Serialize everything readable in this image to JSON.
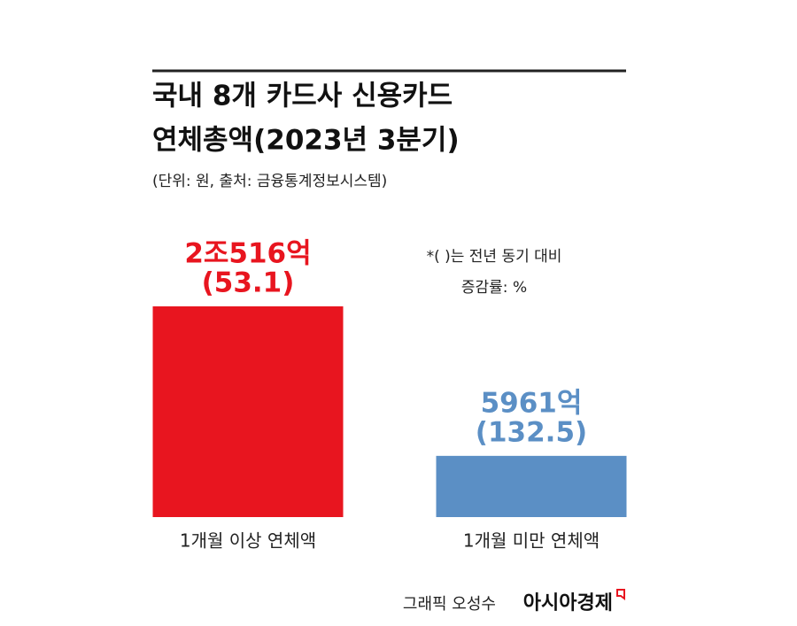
{
  "chart_data": {
    "type": "bar",
    "title": [
      "국내 8개 카드사 신용카드",
      "연체총액(2023년 3분기)"
    ],
    "subtitle": "(단위: 원, 출처: 금융통계정보시스템)",
    "note": [
      "*( )는 전년 동기 대비",
      "증감률: %"
    ],
    "categories": [
      "1개월 이상 연체액",
      "1개월 미만 연체액"
    ],
    "values": [
      20516,
      5961
    ],
    "value_labels": [
      "2조516억",
      "5961억"
    ],
    "changes": {
      "values": [
        53.1,
        132.5
      ],
      "value_labels": [
        "(53.1)",
        "(132.5)"
      ]
    },
    "colors": [
      "#e8151f",
      "#5b8fc5"
    ],
    "credit": "그래픽 오성수",
    "logo": "아시아경제"
  }
}
